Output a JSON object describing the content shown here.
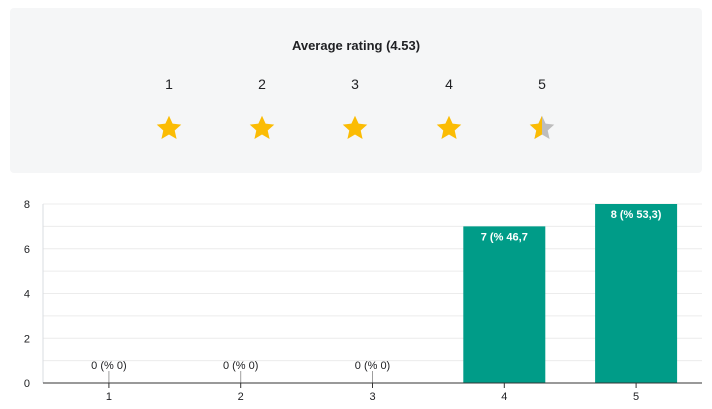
{
  "rating": {
    "title": "Average rating (4.53)",
    "scale": [
      "1",
      "2",
      "3",
      "4",
      "5"
    ],
    "average": 4.53,
    "star_color": "#fbbc04",
    "star_empty_color": "#bdbdbd"
  },
  "chart_data": {
    "type": "bar",
    "categories": [
      "1",
      "2",
      "3",
      "4",
      "5"
    ],
    "values": [
      0,
      0,
      0,
      7,
      8
    ],
    "data_labels": [
      "0 (% 0)",
      "0 (% 0)",
      "0 (% 0)",
      "7 (% 46,7",
      "8 (% 53,3)"
    ],
    "ylim": [
      0,
      8
    ],
    "yticks": [
      "0",
      "2",
      "4",
      "6",
      "8"
    ],
    "grid": true,
    "bar_color": "#009c88",
    "title": "",
    "xlabel": "",
    "ylabel": ""
  }
}
